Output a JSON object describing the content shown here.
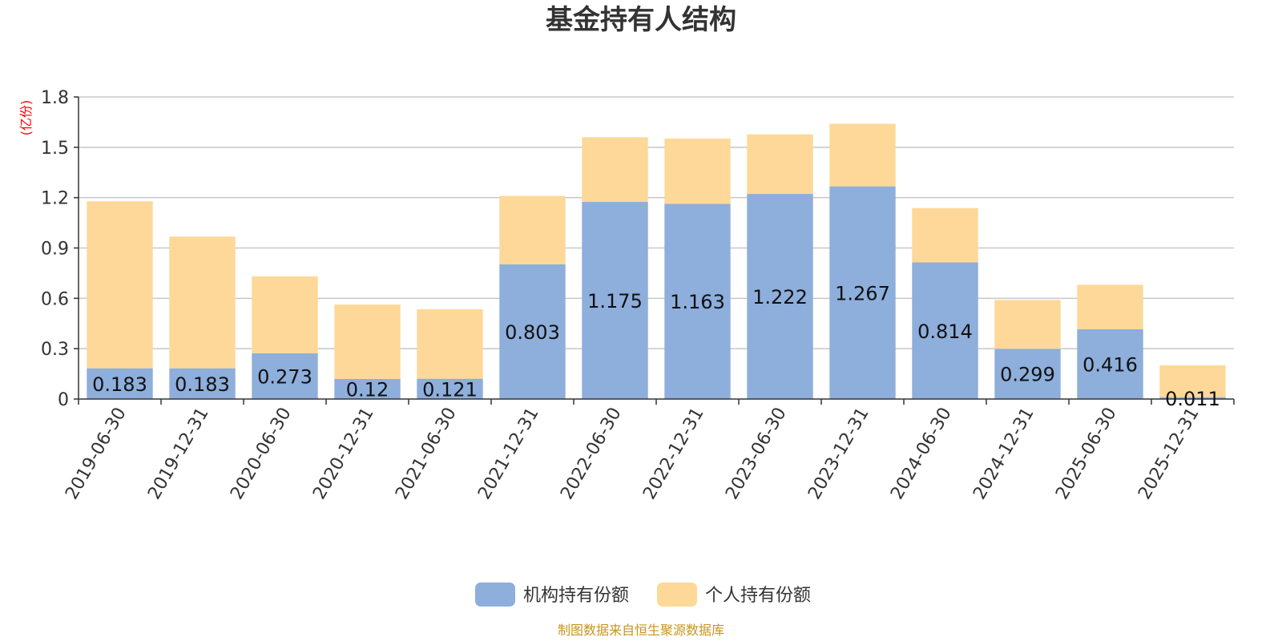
{
  "chart_data": {
    "type": "bar",
    "stacked": true,
    "title": "基金持有人结构",
    "ylabel": "(亿份)",
    "ylim": [
      0,
      1.8
    ],
    "yticks": [
      "0",
      "0.3",
      "0.6",
      "0.9",
      "1.2",
      "1.5",
      "1.8"
    ],
    "ytick_values": [
      0,
      0.3,
      0.6,
      0.9,
      1.2,
      1.5,
      1.8
    ],
    "grid": true,
    "legend_position": "bottom-center",
    "categories": [
      "2019-06-30",
      "2019-12-31",
      "2020-06-30",
      "2020-12-31",
      "2021-06-30",
      "2021-12-31",
      "2022-06-30",
      "2022-12-31",
      "2023-06-30",
      "2023-12-31",
      "2024-06-30",
      "2024-12-31",
      "2025-06-30",
      "2025-12-31"
    ],
    "series": [
      {
        "name": "机构持有份额",
        "color": "#8eaedb",
        "values": [
          0.183,
          0.183,
          0.273,
          0.12,
          0.121,
          0.803,
          1.175,
          1.163,
          1.222,
          1.267,
          0.814,
          0.299,
          0.416,
          0.011
        ],
        "labels": [
          "0.183",
          "0.183",
          "0.273",
          "0.12",
          "0.121",
          "0.803",
          "1.175",
          "1.163",
          "1.222",
          "1.267",
          "0.814",
          "0.299",
          "0.416",
          "0.011"
        ]
      },
      {
        "name": "个人持有份额",
        "color": "#fdd898",
        "values": [
          0.995,
          0.785,
          0.458,
          0.443,
          0.414,
          0.407,
          0.385,
          0.389,
          0.355,
          0.373,
          0.324,
          0.291,
          0.265,
          0.19
        ]
      }
    ]
  },
  "source_note": "制图数据来自恒生聚源数据库"
}
